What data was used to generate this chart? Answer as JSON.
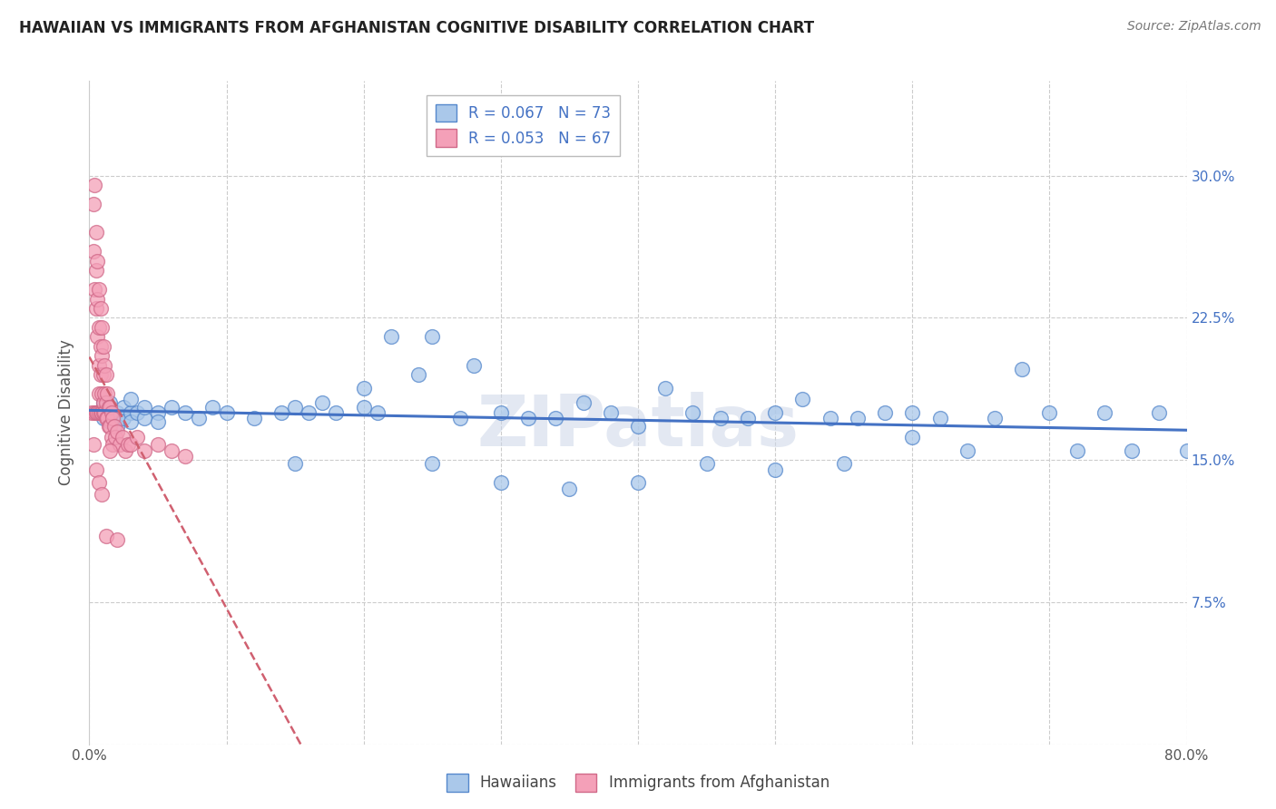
{
  "title": "HAWAIIAN VS IMMIGRANTS FROM AFGHANISTAN COGNITIVE DISABILITY CORRELATION CHART",
  "source": "Source: ZipAtlas.com",
  "ylabel": "Cognitive Disability",
  "xlim": [
    0.0,
    0.8
  ],
  "ylim": [
    0.0,
    0.35
  ],
  "xticks": [
    0.0,
    0.1,
    0.2,
    0.3,
    0.4,
    0.5,
    0.6,
    0.7,
    0.8
  ],
  "xticklabels": [
    "0.0%",
    "",
    "",
    "",
    "",
    "",
    "",
    "",
    "80.0%"
  ],
  "yticks": [
    0.0,
    0.075,
    0.15,
    0.225,
    0.3
  ],
  "yticklabels": [
    "",
    "7.5%",
    "15.0%",
    "22.5%",
    "30.0%"
  ],
  "r_hawaiian": 0.067,
  "n_hawaiian": 73,
  "r_afghanistan": 0.053,
  "n_afghanistan": 67,
  "hawaiian_color": "#aac8ea",
  "afghanistan_color": "#f4a0b8",
  "hawaiian_edge_color": "#5588cc",
  "afghanistan_edge_color": "#d06888",
  "hawaiian_line_color": "#4472c4",
  "afghanistan_line_color": "#d06070",
  "watermark": "ZIPatlas",
  "hawaiian_x": [
    0.01,
    0.01,
    0.01,
    0.015,
    0.015,
    0.015,
    0.02,
    0.02,
    0.02,
    0.025,
    0.025,
    0.03,
    0.03,
    0.03,
    0.035,
    0.04,
    0.04,
    0.05,
    0.05,
    0.06,
    0.07,
    0.08,
    0.09,
    0.1,
    0.12,
    0.14,
    0.15,
    0.16,
    0.17,
    0.18,
    0.2,
    0.21,
    0.22,
    0.24,
    0.25,
    0.27,
    0.28,
    0.3,
    0.32,
    0.34,
    0.36,
    0.38,
    0.4,
    0.42,
    0.44,
    0.46,
    0.48,
    0.5,
    0.52,
    0.54,
    0.56,
    0.58,
    0.6,
    0.62,
    0.64,
    0.66,
    0.68,
    0.7,
    0.72,
    0.74,
    0.76,
    0.78,
    0.8,
    0.15,
    0.2,
    0.25,
    0.3,
    0.35,
    0.4,
    0.45,
    0.5,
    0.55,
    0.6
  ],
  "hawaiian_y": [
    0.175,
    0.18,
    0.172,
    0.175,
    0.18,
    0.17,
    0.175,
    0.172,
    0.168,
    0.172,
    0.178,
    0.175,
    0.17,
    0.182,
    0.175,
    0.172,
    0.178,
    0.175,
    0.17,
    0.178,
    0.175,
    0.172,
    0.178,
    0.175,
    0.172,
    0.175,
    0.178,
    0.175,
    0.18,
    0.175,
    0.178,
    0.175,
    0.215,
    0.195,
    0.215,
    0.172,
    0.2,
    0.175,
    0.172,
    0.172,
    0.18,
    0.175,
    0.168,
    0.188,
    0.175,
    0.172,
    0.172,
    0.175,
    0.182,
    0.172,
    0.172,
    0.175,
    0.175,
    0.172,
    0.155,
    0.172,
    0.198,
    0.175,
    0.155,
    0.175,
    0.155,
    0.175,
    0.155,
    0.148,
    0.188,
    0.148,
    0.138,
    0.135,
    0.138,
    0.148,
    0.145,
    0.148,
    0.162
  ],
  "afghanistan_x": [
    0.002,
    0.003,
    0.003,
    0.004,
    0.004,
    0.004,
    0.005,
    0.005,
    0.005,
    0.005,
    0.006,
    0.006,
    0.006,
    0.006,
    0.007,
    0.007,
    0.007,
    0.007,
    0.007,
    0.008,
    0.008,
    0.008,
    0.008,
    0.009,
    0.009,
    0.009,
    0.009,
    0.01,
    0.01,
    0.01,
    0.01,
    0.011,
    0.011,
    0.011,
    0.012,
    0.012,
    0.012,
    0.013,
    0.013,
    0.014,
    0.014,
    0.015,
    0.015,
    0.016,
    0.016,
    0.017,
    0.017,
    0.018,
    0.019,
    0.02,
    0.022,
    0.024,
    0.026,
    0.028,
    0.03,
    0.035,
    0.04,
    0.05,
    0.06,
    0.07,
    0.003,
    0.005,
    0.007,
    0.009,
    0.012,
    0.015,
    0.02
  ],
  "afghanistan_y": [
    0.175,
    0.285,
    0.26,
    0.295,
    0.24,
    0.175,
    0.27,
    0.25,
    0.23,
    0.175,
    0.255,
    0.235,
    0.215,
    0.175,
    0.24,
    0.22,
    0.2,
    0.185,
    0.175,
    0.23,
    0.21,
    0.195,
    0.175,
    0.22,
    0.205,
    0.185,
    0.175,
    0.21,
    0.195,
    0.18,
    0.175,
    0.2,
    0.185,
    0.175,
    0.195,
    0.18,
    0.172,
    0.185,
    0.172,
    0.178,
    0.168,
    0.178,
    0.168,
    0.175,
    0.162,
    0.172,
    0.158,
    0.168,
    0.162,
    0.165,
    0.158,
    0.162,
    0.155,
    0.158,
    0.158,
    0.162,
    0.155,
    0.158,
    0.155,
    0.152,
    0.158,
    0.145,
    0.138,
    0.132,
    0.11,
    0.155,
    0.108
  ]
}
